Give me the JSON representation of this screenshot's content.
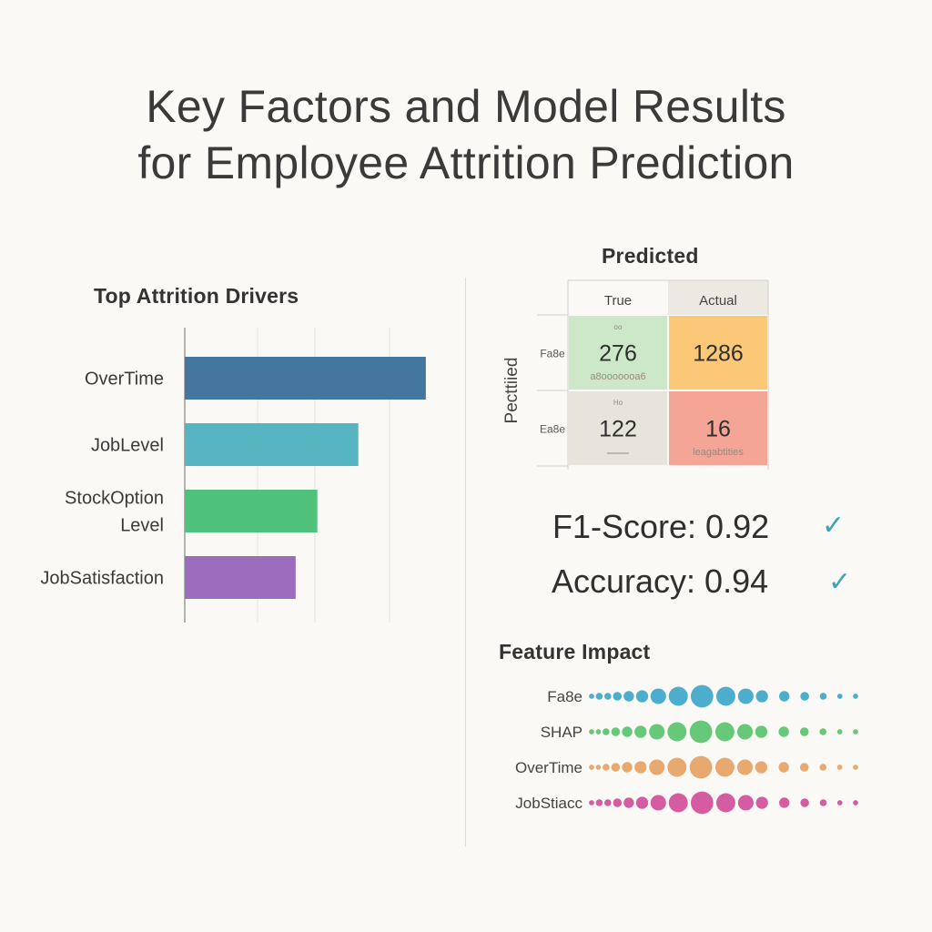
{
  "title_line1": "Key Factors and Model Results",
  "title_line2": "for Employee Attrition Prediction",
  "colors": {
    "overtime": "#45769f",
    "joblevel": "#57b5c2",
    "stock": "#4ec27c",
    "jobsat": "#9c6dbc",
    "dot_blue": "#3aa4c8",
    "dot_green": "#55c26a",
    "dot_orange": "#e6a062",
    "dot_pink": "#d04a98",
    "cm_green": "#cde8c8",
    "cm_orange": "#fbc877",
    "cm_gray": "#e7e4dc",
    "cm_red": "#f4a595",
    "check": "#3aa4b8"
  },
  "chart_data": [
    {
      "type": "bar",
      "orientation": "horizontal",
      "title": "Top Attrition Drivers",
      "categories": [
        "OverTime",
        "JobLevel",
        "StockOption Level",
        "JobSatisfaction"
      ],
      "category_lines": [
        [
          "OverTime"
        ],
        [
          "JobLevel"
        ],
        [
          "StockOption",
          "Level"
        ],
        [
          "JobSatisfaction"
        ]
      ],
      "values": [
        1.0,
        0.72,
        0.55,
        0.46
      ],
      "xlim": [
        0,
        1.05
      ],
      "grid": true
    },
    {
      "type": "heatmap",
      "title": "Predicted",
      "col_labels": [
        "True",
        "Actual"
      ],
      "row_axis_label": "Pecttiied",
      "row_labels": [
        "Fa8e",
        "Ea8e"
      ],
      "cells": [
        [
          276,
          1286
        ],
        [
          122,
          16
        ]
      ],
      "cell_sublabels": [
        [
          "a8ooooooa6",
          ""
        ],
        [
          "",
          "leagabtities"
        ]
      ],
      "cell_toplabels": [
        [
          "oo",
          ""
        ],
        [
          "Ho",
          ""
        ]
      ]
    },
    {
      "type": "scatter",
      "title": "Feature Impact",
      "rows": [
        "Fa8e",
        "SHAP",
        "OverTime",
        "JobStiacc"
      ],
      "dot_sizes": [
        [
          3,
          4,
          4,
          5,
          6,
          7,
          9,
          11,
          13,
          11,
          9,
          7,
          6,
          5,
          4,
          3,
          3
        ],
        [
          3,
          3,
          4,
          5,
          6,
          7,
          9,
          11,
          13,
          11,
          9,
          7,
          6,
          5,
          4,
          3,
          3
        ],
        [
          3,
          3,
          4,
          5,
          6,
          7,
          9,
          11,
          13,
          11,
          9,
          7,
          6,
          5,
          4,
          3,
          3
        ],
        [
          3,
          4,
          4,
          5,
          6,
          7,
          9,
          11,
          13,
          11,
          9,
          7,
          6,
          5,
          4,
          3,
          3
        ]
      ]
    }
  ],
  "metrics": {
    "f1_label": "F1-Score:",
    "f1_value": "0.92",
    "accuracy_label": "Accuracy:",
    "accuracy_value": "0.94",
    "check_glyph": "✓"
  }
}
